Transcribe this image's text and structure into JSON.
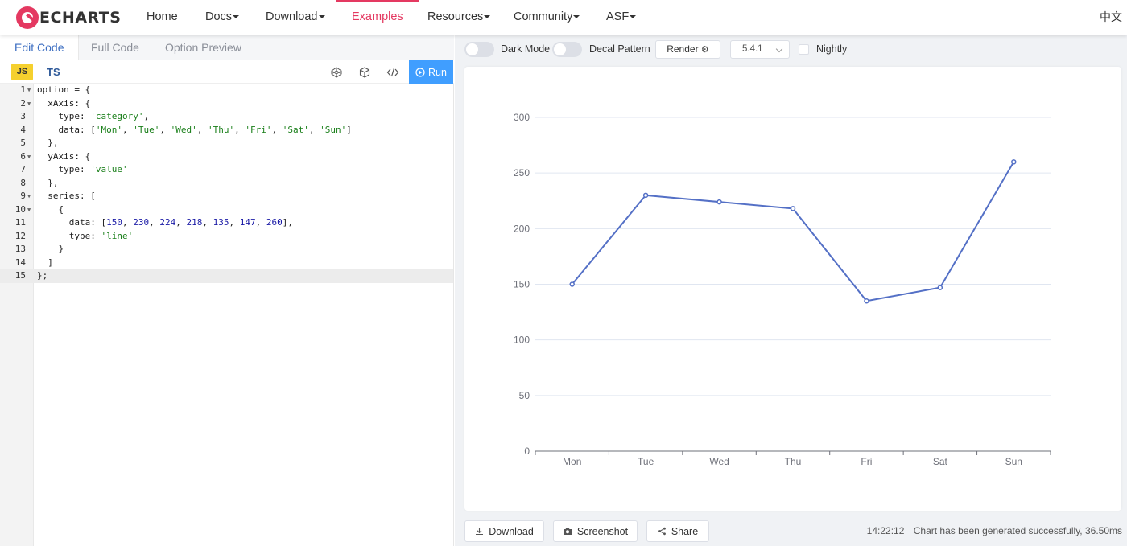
{
  "nav": {
    "logo_text": "ECHARTS",
    "items": [
      {
        "label": "Home",
        "dropdown": false,
        "active": false
      },
      {
        "label": "Docs",
        "dropdown": true,
        "active": false
      },
      {
        "label": "Download",
        "dropdown": true,
        "active": false
      },
      {
        "label": "Examples",
        "dropdown": false,
        "active": true
      },
      {
        "label": "Resources",
        "dropdown": true,
        "active": false
      },
      {
        "label": "Community",
        "dropdown": true,
        "active": false
      },
      {
        "label": "ASF",
        "dropdown": true,
        "active": false
      }
    ],
    "lang": "中文",
    "accent_color": "#e43961"
  },
  "editor": {
    "tabs": [
      "Edit Code",
      "Full Code",
      "Option Preview"
    ],
    "active_tab": "Edit Code",
    "lang_js": "JS",
    "lang_ts": "TS",
    "run_label": "Run",
    "current_line": 15,
    "lines": [
      "option = {",
      "  xAxis: {",
      "    type: 'category',",
      "    data: ['Mon', 'Tue', 'Wed', 'Thu', 'Fri', 'Sat', 'Sun']",
      "  },",
      "  yAxis: {",
      "    type: 'value'",
      "  },",
      "  series: [",
      "    {",
      "      data: [150, 230, 224, 218, 135, 147, 260],",
      "      type: 'line'",
      "    }",
      "  ]",
      "};"
    ]
  },
  "preview": {
    "dark_mode_label": "Dark Mode",
    "decal_label": "Decal Pattern",
    "render_label": "Render",
    "version": "5.4.1",
    "nightly_label": "Nightly",
    "download_label": "Download",
    "screenshot_label": "Screenshot",
    "share_label": "Share",
    "status_time": "14:22:12",
    "status_text": "Chart has been generated successfully, 36.50ms"
  },
  "chart_data": {
    "type": "line",
    "categories": [
      "Mon",
      "Tue",
      "Wed",
      "Thu",
      "Fri",
      "Sat",
      "Sun"
    ],
    "values": [
      150,
      230,
      224,
      218,
      135,
      147,
      260
    ],
    "ylim": [
      0,
      300
    ],
    "yticks": [
      0,
      50,
      100,
      150,
      200,
      250,
      300
    ],
    "grid": true,
    "legend": "none",
    "line_color": "#5470c6"
  }
}
